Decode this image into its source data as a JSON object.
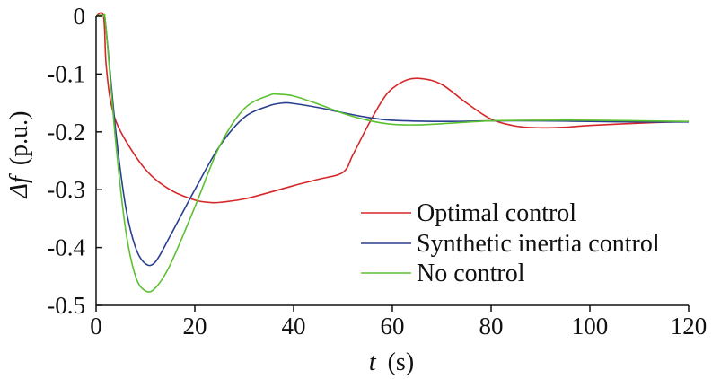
{
  "chart_data": {
    "type": "line",
    "xlabel_var": "t",
    "xlabel_unit": "(s)",
    "ylabel_var": "Δf",
    "ylabel_unit": "(p.u.)",
    "xlim": [
      0,
      120
    ],
    "ylim": [
      -0.5,
      0
    ],
    "xticks": [
      0,
      20,
      40,
      60,
      80,
      100,
      120
    ],
    "xtick_labels": [
      "0",
      "20",
      "40",
      "60",
      "80",
      "100",
      "120"
    ],
    "yticks": [
      0,
      -0.1,
      -0.2,
      -0.3,
      -0.4,
      -0.5
    ],
    "ytick_labels": [
      "0",
      "-0.1",
      "-0.2",
      "-0.3",
      "-0.4",
      "-0.5"
    ],
    "grid": false,
    "legend_position": "lower-right",
    "series": [
      {
        "name": "Optimal control",
        "color": "#d62728",
        "x": [
          0,
          1.5,
          2,
          3,
          5,
          10,
          15,
          20,
          23,
          25,
          30,
          35,
          40,
          45,
          50,
          52,
          55,
          58,
          60,
          63,
          66,
          70,
          75,
          80,
          85,
          90,
          95,
          100,
          110,
          120
        ],
        "y": [
          0,
          0,
          -0.08,
          -0.15,
          -0.2,
          -0.265,
          -0.3,
          -0.318,
          -0.322,
          -0.322,
          -0.316,
          -0.305,
          -0.293,
          -0.282,
          -0.27,
          -0.24,
          -0.19,
          -0.145,
          -0.125,
          -0.11,
          -0.108,
          -0.118,
          -0.15,
          -0.178,
          -0.19,
          -0.193,
          -0.192,
          -0.189,
          -0.185,
          -0.182
        ]
      },
      {
        "name": "Synthetic inertia control",
        "color": "#2a3f8f",
        "x": [
          0,
          1.5,
          2,
          4,
          6,
          8,
          10,
          12,
          15,
          20,
          25,
          30,
          35,
          38,
          40,
          45,
          50,
          55,
          60,
          70,
          80,
          90,
          100,
          110,
          120
        ],
        "y": [
          0,
          0,
          -0.02,
          -0.2,
          -0.33,
          -0.4,
          -0.428,
          -0.425,
          -0.38,
          -0.3,
          -0.225,
          -0.175,
          -0.155,
          -0.15,
          -0.151,
          -0.158,
          -0.167,
          -0.175,
          -0.18,
          -0.182,
          -0.181,
          -0.181,
          -0.182,
          -0.183,
          -0.183
        ]
      },
      {
        "name": "No control",
        "color": "#5cc130",
        "x": [
          0,
          1.5,
          2,
          4,
          6,
          8,
          10,
          12,
          15,
          20,
          25,
          30,
          35,
          37,
          40,
          45,
          50,
          55,
          60,
          65,
          70,
          80,
          90,
          100,
          110,
          120
        ],
        "y": [
          0,
          0,
          -0.02,
          -0.22,
          -0.37,
          -0.45,
          -0.475,
          -0.47,
          -0.43,
          -0.33,
          -0.225,
          -0.16,
          -0.137,
          -0.135,
          -0.138,
          -0.152,
          -0.168,
          -0.18,
          -0.187,
          -0.188,
          -0.186,
          -0.181,
          -0.18,
          -0.18,
          -0.181,
          -0.182
        ]
      }
    ]
  }
}
